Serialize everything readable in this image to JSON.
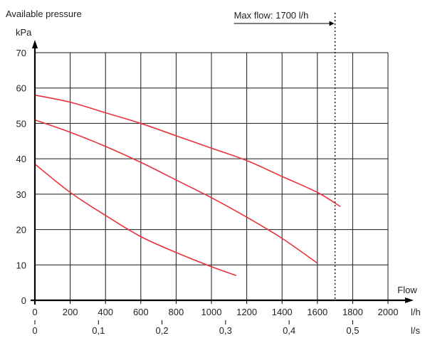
{
  "chart_data": {
    "type": "line",
    "title": "Available pressure",
    "ylabel": "kPa",
    "xlabel": "Flow",
    "x_unit_primary": "l/h",
    "x_unit_secondary": "l/s",
    "xlim": [
      0,
      2000
    ],
    "ylim": [
      0,
      70
    ],
    "x_ticks": [
      "0",
      "200",
      "400",
      "600",
      "800",
      "1000",
      "1200",
      "1400",
      "1600",
      "1800",
      "2000"
    ],
    "x_ticks_secondary": [
      {
        "value": 0,
        "label": "0"
      },
      {
        "value": 0.1,
        "label": "0,1"
      },
      {
        "value": 0.2,
        "label": "0,2"
      },
      {
        "value": 0.3,
        "label": "0,3"
      },
      {
        "value": 0.4,
        "label": "0,4"
      },
      {
        "value": 0.5,
        "label": "0,5"
      }
    ],
    "y_ticks": [
      "0",
      "10",
      "20",
      "30",
      "40",
      "50",
      "60",
      "70"
    ],
    "grid": true,
    "annotation": {
      "text": "Max flow: 1700 l/h",
      "x": 1700
    },
    "series": [
      {
        "color": "#e8323c",
        "points": [
          [
            0,
            58
          ],
          [
            200,
            56
          ],
          [
            400,
            53
          ],
          [
            600,
            50
          ],
          [
            800,
            46.5
          ],
          [
            1000,
            43
          ],
          [
            1200,
            39.5
          ],
          [
            1400,
            35
          ],
          [
            1600,
            30.5
          ],
          [
            1730,
            26.5
          ]
        ]
      },
      {
        "color": "#e8323c",
        "points": [
          [
            0,
            51
          ],
          [
            200,
            47.5
          ],
          [
            400,
            43.5
          ],
          [
            600,
            39
          ],
          [
            800,
            34
          ],
          [
            1000,
            29
          ],
          [
            1200,
            23.5
          ],
          [
            1400,
            17.5
          ],
          [
            1600,
            10.5
          ]
        ]
      },
      {
        "color": "#e8323c",
        "points": [
          [
            0,
            38.5
          ],
          [
            200,
            30.5
          ],
          [
            400,
            24
          ],
          [
            600,
            18
          ],
          [
            800,
            13.5
          ],
          [
            1000,
            9.5
          ],
          [
            1140,
            7
          ]
        ]
      }
    ]
  }
}
